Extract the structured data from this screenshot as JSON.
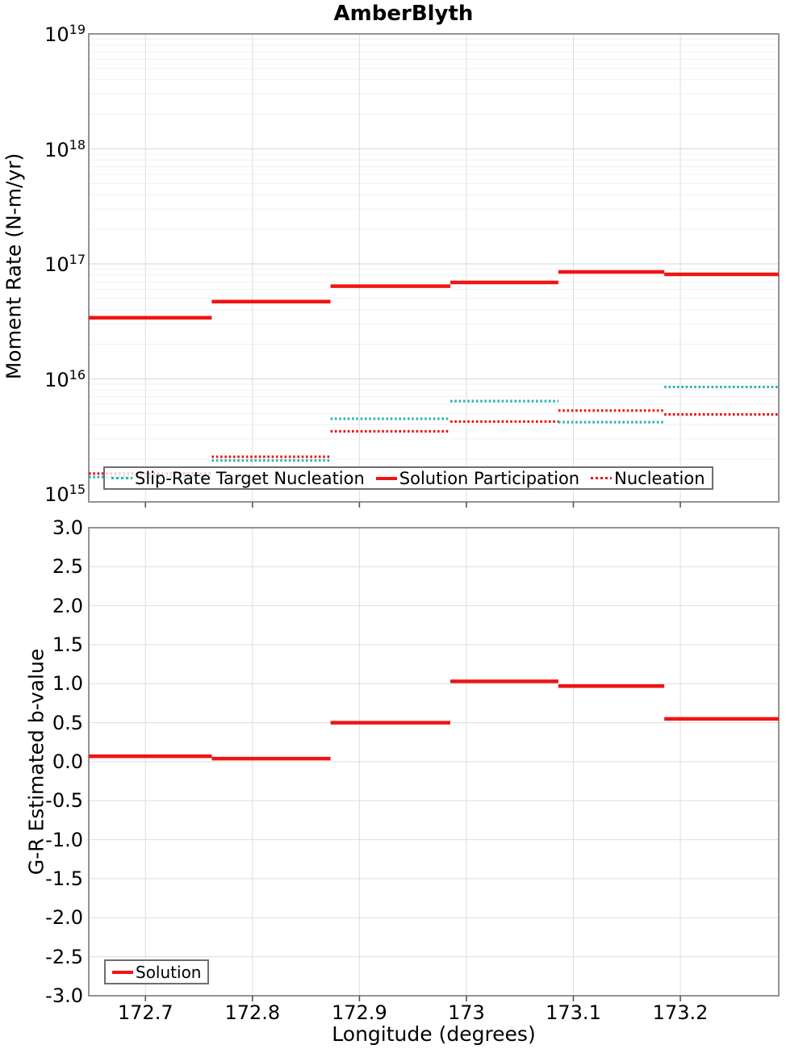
{
  "title": "AmberBlyth",
  "colors": {
    "solution": "#f01414",
    "nucleation": "#f01414",
    "slip_rate_target": "#2ab4b4",
    "grid_minor": "#f0f0f0",
    "grid_major": "#dedede",
    "frame": "#949494",
    "tick": "#555555",
    "legend_border": "#6e6e6e"
  },
  "xticks": {
    "values": [
      172.7,
      172.8,
      172.9,
      173.0,
      173.1,
      173.2
    ],
    "labels": [
      "172.7",
      "172.8",
      "172.9",
      "173",
      "173.1",
      "173.2"
    ]
  },
  "chart_data": [
    {
      "type": "line",
      "subtype": "horizontal-step-segments",
      "title": "AmberBlyth",
      "ylabel": "Moment Rate (N-m/yr)",
      "yscale": "log",
      "ylim": [
        1000000000000000.0,
        1e+19
      ],
      "ytick_exponents": [
        19,
        18,
        17,
        16,
        15
      ],
      "xlim": [
        172.647,
        173.292
      ],
      "grid": true,
      "legend_position": "bottom-left",
      "bin_edges_longitude": [
        172.647,
        172.762,
        172.873,
        172.985,
        173.086,
        173.185,
        173.292
      ],
      "series": [
        {
          "name": "Slip-Rate Target Nucleation",
          "color": "#2ab4b4",
          "style": "dotted",
          "values": [
            1400000000000000.0,
            1950000000000000.0,
            4500000000000000.0,
            6400000000000000.0,
            4200000000000000.0,
            8500000000000000.0
          ]
        },
        {
          "name": "Solution Participation",
          "color": "#f01414",
          "style": "solid",
          "values": [
            3.4e+16,
            4.7e+16,
            6.4e+16,
            6.9e+16,
            8.5e+16,
            8.1e+16
          ]
        },
        {
          "name": "Nucleation",
          "color": "#f01414",
          "style": "dotted",
          "values": [
            1500000000000000.0,
            2100000000000000.0,
            3500000000000000.0,
            4250000000000000.0,
            5300000000000000.0,
            4900000000000000.0
          ]
        }
      ]
    },
    {
      "type": "line",
      "subtype": "horizontal-step-segments",
      "ylabel": "G-R Estimated b-value",
      "xlabel": "Longitude (degrees)",
      "ylim": [
        -3.0,
        3.0
      ],
      "ytick_values": [
        3.0,
        2.5,
        2.0,
        1.5,
        1.0,
        0.5,
        0.0,
        -0.5,
        -1.0,
        -1.5,
        -2.0,
        -2.5,
        -3.0
      ],
      "ytick_labels": [
        "3.0",
        "2.5",
        "2.0",
        "1.5",
        "1.0",
        "0.5",
        "0.0",
        "-0.5",
        "-1.0",
        "-1.5",
        "-2.0",
        "-2.5",
        "-3.0"
      ],
      "xlim": [
        172.647,
        173.292
      ],
      "grid": true,
      "legend_position": "bottom-left",
      "bin_edges_longitude": [
        172.647,
        172.762,
        172.873,
        172.985,
        173.086,
        173.185,
        173.292
      ],
      "series": [
        {
          "name": "Solution",
          "color": "#f01414",
          "style": "solid",
          "values": [
            0.07,
            0.04,
            0.5,
            1.03,
            0.97,
            0.55
          ]
        }
      ]
    }
  ]
}
